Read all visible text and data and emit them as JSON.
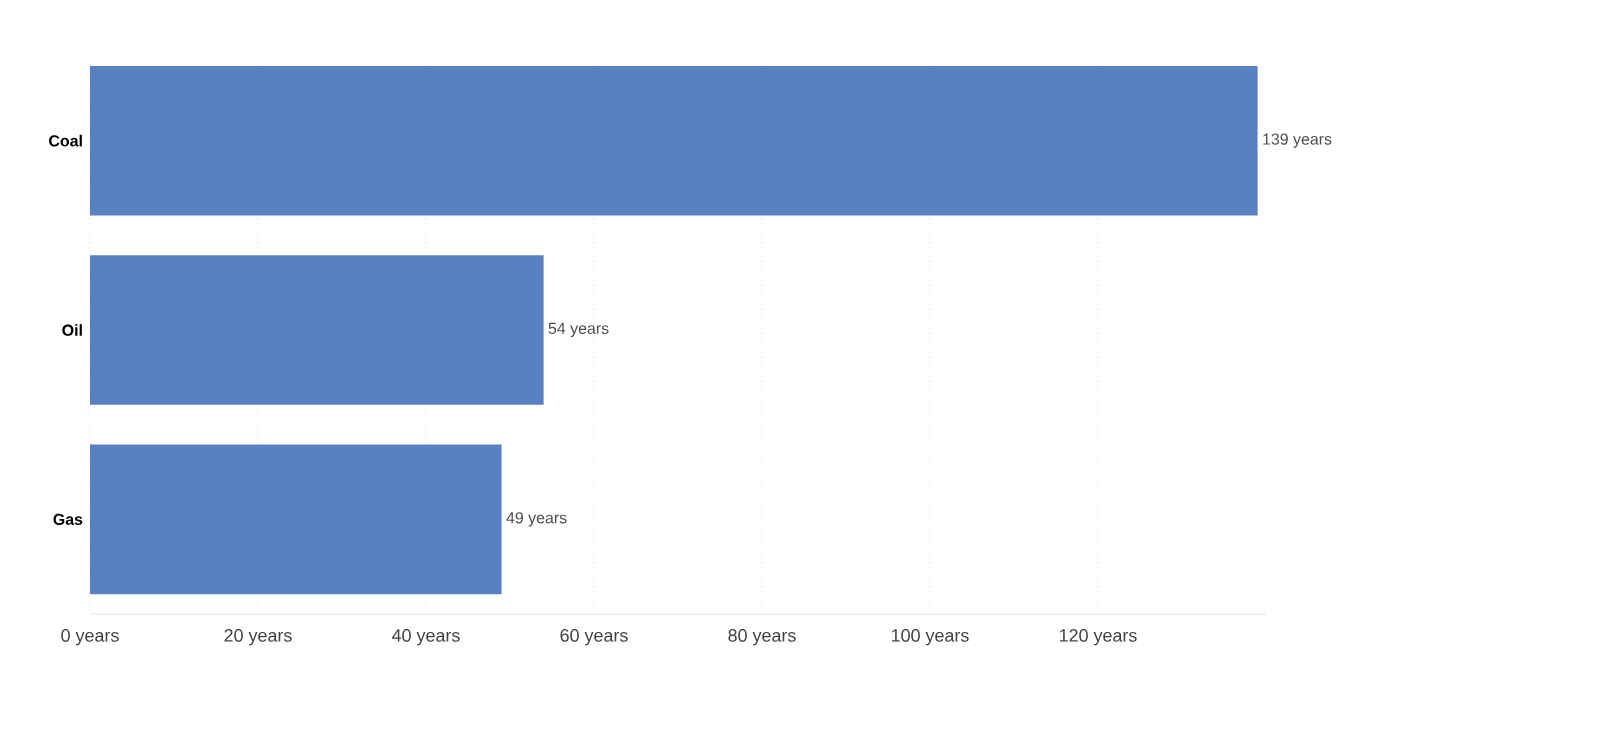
{
  "chart_data": {
    "type": "bar",
    "orientation": "horizontal",
    "categories": [
      "Coal",
      "Oil",
      "Gas"
    ],
    "values": [
      139,
      54,
      49
    ],
    "color": "#5a80c4",
    "value_labels": [
      "139 years",
      "54 years",
      "49 years"
    ],
    "xlim": [
      0,
      140
    ],
    "xticks": [
      {
        "value": 0,
        "label": "0 years"
      },
      {
        "value": 20,
        "label": "20 years"
      },
      {
        "value": 40,
        "label": "40 years"
      },
      {
        "value": 60,
        "label": "60 years"
      },
      {
        "value": 80,
        "label": "80 years"
      },
      {
        "value": 100,
        "label": "100 years"
      },
      {
        "value": 120,
        "label": "120 years"
      }
    ],
    "grid": "x"
  }
}
